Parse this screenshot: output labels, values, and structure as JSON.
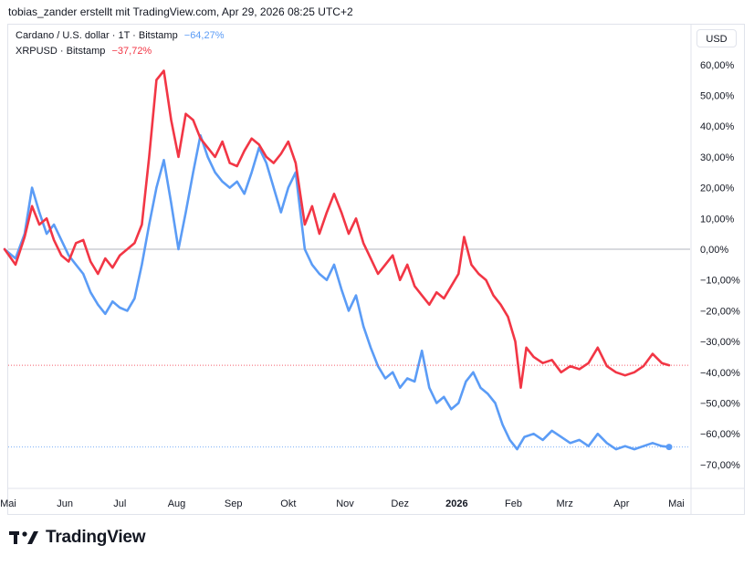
{
  "header": {
    "title": "tobias_zander erstellt mit TradingView.com, Apr 29, 2026 08:25 UTC+2"
  },
  "legend": [
    {
      "name": "Cardano / U.S. dollar · 1T · Bitstamp",
      "value": "−64,27%",
      "color": "#5b9cf6"
    },
    {
      "name": "XRPUSD · Bitstamp",
      "value": "−37,72%",
      "color": "#f23645"
    }
  ],
  "currency_button": "USD",
  "branding": {
    "logo_text": "TradingView"
  },
  "chart_data": {
    "type": "line",
    "x_ticks": [
      "Mai",
      "Jun",
      "Jul",
      "Aug",
      "Sep",
      "Okt",
      "Nov",
      "Dez",
      "2026",
      "Feb",
      "Mrz",
      "Apr",
      "Mai"
    ],
    "y_ticks": [
      "60,00%",
      "50,00%",
      "40,00%",
      "30,00%",
      "20,00%",
      "10,00%",
      "0,00%",
      "−10,00%",
      "−20,00%",
      "−30,00%",
      "−40,00%",
      "−50,00%",
      "−60,00%",
      "−70,00%"
    ],
    "ylim": [
      -80,
      68
    ],
    "y_unit": "%",
    "x_format": "YYYY-MM-DD",
    "grid": false,
    "zero_line": true,
    "series": [
      {
        "name": "Cardano / U.S. dollar · 1T · Bitstamp",
        "color": "#5b9cf6",
        "last_value": -64.27,
        "points": [
          [
            "2025-04-29",
            0
          ],
          [
            "2025-05-05",
            -3
          ],
          [
            "2025-05-10",
            5
          ],
          [
            "2025-05-14",
            20
          ],
          [
            "2025-05-18",
            12
          ],
          [
            "2025-05-22",
            5
          ],
          [
            "2025-05-26",
            8
          ],
          [
            "2025-05-30",
            3
          ],
          [
            "2025-06-03",
            -2
          ],
          [
            "2025-06-07",
            -5
          ],
          [
            "2025-06-11",
            -8
          ],
          [
            "2025-06-15",
            -14
          ],
          [
            "2025-06-19",
            -18
          ],
          [
            "2025-06-23",
            -21
          ],
          [
            "2025-06-27",
            -17
          ],
          [
            "2025-07-01",
            -19
          ],
          [
            "2025-07-05",
            -20
          ],
          [
            "2025-07-09",
            -16
          ],
          [
            "2025-07-13",
            -5
          ],
          [
            "2025-07-17",
            8
          ],
          [
            "2025-07-21",
            20
          ],
          [
            "2025-07-25",
            29
          ],
          [
            "2025-07-29",
            15
          ],
          [
            "2025-08-02",
            0
          ],
          [
            "2025-08-06",
            12
          ],
          [
            "2025-08-10",
            25
          ],
          [
            "2025-08-14",
            37
          ],
          [
            "2025-08-18",
            30
          ],
          [
            "2025-08-22",
            25
          ],
          [
            "2025-08-26",
            22
          ],
          [
            "2025-08-30",
            20
          ],
          [
            "2025-09-03",
            22
          ],
          [
            "2025-09-07",
            18
          ],
          [
            "2025-09-11",
            25
          ],
          [
            "2025-09-15",
            33
          ],
          [
            "2025-09-19",
            28
          ],
          [
            "2025-09-23",
            20
          ],
          [
            "2025-09-27",
            12
          ],
          [
            "2025-10-01",
            20
          ],
          [
            "2025-10-05",
            25
          ],
          [
            "2025-10-10",
            0
          ],
          [
            "2025-10-14",
            -5
          ],
          [
            "2025-10-18",
            -8
          ],
          [
            "2025-10-22",
            -10
          ],
          [
            "2025-10-26",
            -5
          ],
          [
            "2025-10-30",
            -13
          ],
          [
            "2025-11-03",
            -20
          ],
          [
            "2025-11-07",
            -15
          ],
          [
            "2025-11-11",
            -25
          ],
          [
            "2025-11-15",
            -32
          ],
          [
            "2025-11-19",
            -38
          ],
          [
            "2025-11-23",
            -42
          ],
          [
            "2025-11-27",
            -40
          ],
          [
            "2025-12-01",
            -45
          ],
          [
            "2025-12-05",
            -42
          ],
          [
            "2025-12-09",
            -43
          ],
          [
            "2025-12-13",
            -33
          ],
          [
            "2025-12-17",
            -45
          ],
          [
            "2025-12-21",
            -50
          ],
          [
            "2025-12-25",
            -48
          ],
          [
            "2025-12-29",
            -52
          ],
          [
            "2026-01-02",
            -50
          ],
          [
            "2026-01-06",
            -43
          ],
          [
            "2026-01-10",
            -40
          ],
          [
            "2026-01-14",
            -45
          ],
          [
            "2026-01-18",
            -47
          ],
          [
            "2026-01-22",
            -50
          ],
          [
            "2026-01-26",
            -57
          ],
          [
            "2026-01-30",
            -62
          ],
          [
            "2026-02-03",
            -65
          ],
          [
            "2026-02-07",
            -61
          ],
          [
            "2026-02-12",
            -60
          ],
          [
            "2026-02-17",
            -62
          ],
          [
            "2026-02-22",
            -59
          ],
          [
            "2026-02-27",
            -61
          ],
          [
            "2026-03-04",
            -63
          ],
          [
            "2026-03-09",
            -62
          ],
          [
            "2026-03-14",
            -64
          ],
          [
            "2026-03-19",
            -60
          ],
          [
            "2026-03-24",
            -63
          ],
          [
            "2026-03-29",
            -65
          ],
          [
            "2026-04-03",
            -64
          ],
          [
            "2026-04-08",
            -65
          ],
          [
            "2026-04-13",
            -64
          ],
          [
            "2026-04-18",
            -63
          ],
          [
            "2026-04-23",
            -64
          ],
          [
            "2026-04-27",
            -64.27
          ]
        ]
      },
      {
        "name": "XRPUSD · Bitstamp",
        "color": "#f23645",
        "last_value": -37.72,
        "points": [
          [
            "2025-04-29",
            0
          ],
          [
            "2025-05-05",
            -5
          ],
          [
            "2025-05-10",
            4
          ],
          [
            "2025-05-14",
            14
          ],
          [
            "2025-05-18",
            8
          ],
          [
            "2025-05-22",
            10
          ],
          [
            "2025-05-26",
            3
          ],
          [
            "2025-05-30",
            -2
          ],
          [
            "2025-06-03",
            -4
          ],
          [
            "2025-06-07",
            2
          ],
          [
            "2025-06-11",
            3
          ],
          [
            "2025-06-15",
            -4
          ],
          [
            "2025-06-19",
            -8
          ],
          [
            "2025-06-23",
            -3
          ],
          [
            "2025-06-27",
            -6
          ],
          [
            "2025-07-01",
            -2
          ],
          [
            "2025-07-05",
            0
          ],
          [
            "2025-07-09",
            2
          ],
          [
            "2025-07-13",
            8
          ],
          [
            "2025-07-17",
            30
          ],
          [
            "2025-07-21",
            55
          ],
          [
            "2025-07-25",
            58
          ],
          [
            "2025-07-29",
            42
          ],
          [
            "2025-08-02",
            30
          ],
          [
            "2025-08-06",
            44
          ],
          [
            "2025-08-10",
            42
          ],
          [
            "2025-08-14",
            36
          ],
          [
            "2025-08-18",
            33
          ],
          [
            "2025-08-22",
            30
          ],
          [
            "2025-08-26",
            35
          ],
          [
            "2025-08-30",
            28
          ],
          [
            "2025-09-03",
            27
          ],
          [
            "2025-09-07",
            32
          ],
          [
            "2025-09-11",
            36
          ],
          [
            "2025-09-15",
            34
          ],
          [
            "2025-09-19",
            30
          ],
          [
            "2025-09-23",
            28
          ],
          [
            "2025-09-27",
            31
          ],
          [
            "2025-10-01",
            35
          ],
          [
            "2025-10-05",
            28
          ],
          [
            "2025-10-10",
            8
          ],
          [
            "2025-10-14",
            14
          ],
          [
            "2025-10-18",
            5
          ],
          [
            "2025-10-22",
            12
          ],
          [
            "2025-10-26",
            18
          ],
          [
            "2025-10-30",
            12
          ],
          [
            "2025-11-03",
            5
          ],
          [
            "2025-11-07",
            10
          ],
          [
            "2025-11-11",
            2
          ],
          [
            "2025-11-15",
            -3
          ],
          [
            "2025-11-19",
            -8
          ],
          [
            "2025-11-23",
            -5
          ],
          [
            "2025-11-27",
            -2
          ],
          [
            "2025-12-01",
            -10
          ],
          [
            "2025-12-05",
            -5
          ],
          [
            "2025-12-09",
            -12
          ],
          [
            "2025-12-13",
            -15
          ],
          [
            "2025-12-17",
            -18
          ],
          [
            "2025-12-21",
            -14
          ],
          [
            "2025-12-25",
            -16
          ],
          [
            "2025-12-29",
            -12
          ],
          [
            "2026-01-02",
            -8
          ],
          [
            "2026-01-05",
            4
          ],
          [
            "2026-01-09",
            -5
          ],
          [
            "2026-01-13",
            -8
          ],
          [
            "2026-01-17",
            -10
          ],
          [
            "2026-01-21",
            -15
          ],
          [
            "2026-01-25",
            -18
          ],
          [
            "2026-01-29",
            -22
          ],
          [
            "2026-02-02",
            -30
          ],
          [
            "2026-02-05",
            -45
          ],
          [
            "2026-02-08",
            -32
          ],
          [
            "2026-02-12",
            -35
          ],
          [
            "2026-02-17",
            -37
          ],
          [
            "2026-02-22",
            -36
          ],
          [
            "2026-02-27",
            -40
          ],
          [
            "2026-03-04",
            -38
          ],
          [
            "2026-03-09",
            -39
          ],
          [
            "2026-03-14",
            -37
          ],
          [
            "2026-03-19",
            -32
          ],
          [
            "2026-03-24",
            -38
          ],
          [
            "2026-03-29",
            -40
          ],
          [
            "2026-04-03",
            -41
          ],
          [
            "2026-04-08",
            -40
          ],
          [
            "2026-04-13",
            -38
          ],
          [
            "2026-04-18",
            -34
          ],
          [
            "2026-04-23",
            -37
          ],
          [
            "2026-04-27",
            -37.72
          ]
        ]
      }
    ]
  }
}
